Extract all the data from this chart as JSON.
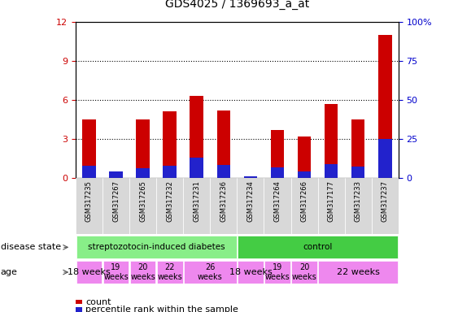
{
  "title": "GDS4025 / 1369693_a_at",
  "samples": [
    "GSM317235",
    "GSM317267",
    "GSM317265",
    "GSM317232",
    "GSM317231",
    "GSM317236",
    "GSM317234",
    "GSM317264",
    "GSM317266",
    "GSM317177",
    "GSM317233",
    "GSM317237"
  ],
  "count_values": [
    4.5,
    0.35,
    4.5,
    5.1,
    6.3,
    5.2,
    0.0,
    3.7,
    3.15,
    5.7,
    4.5,
    11.0
  ],
  "percentile_pct": [
    8.0,
    4.0,
    6.0,
    8.0,
    13.0,
    8.5,
    1.0,
    6.5,
    4.0,
    9.0,
    7.0,
    25.0
  ],
  "ylim_left": [
    0,
    12
  ],
  "ylim_right": [
    0,
    100
  ],
  "yticks_left": [
    0,
    3,
    6,
    9,
    12
  ],
  "ytick_labels_right": [
    "0",
    "25",
    "50",
    "75",
    "100%"
  ],
  "yticks_right": [
    0,
    25,
    50,
    75,
    100
  ],
  "bar_color_red": "#cc0000",
  "bar_color_blue": "#2222cc",
  "bar_width": 0.5,
  "disease_state_diabetes_label": "streptozotocin-induced diabetes",
  "disease_state_control_label": "control",
  "disease_state_diabetes_color": "#88ee88",
  "disease_state_control_color": "#44cc44",
  "age_color": "#ee88ee",
  "tick_color_left": "#cc0000",
  "tick_color_right": "#0000cc",
  "legend_count": "count",
  "legend_percentile": "percentile rank within the sample",
  "age_groups_diabetes": [
    {
      "start": 0,
      "end": 1,
      "label": "18 weeks",
      "fontsize": 8
    },
    {
      "start": 1,
      "end": 2,
      "label": "19\nweeks",
      "fontsize": 7
    },
    {
      "start": 2,
      "end": 3,
      "label": "20\nweeks",
      "fontsize": 7
    },
    {
      "start": 3,
      "end": 4,
      "label": "22\nweeks",
      "fontsize": 7
    },
    {
      "start": 4,
      "end": 6,
      "label": "26\nweeks",
      "fontsize": 7
    }
  ],
  "age_groups_control": [
    {
      "start": 6,
      "end": 7,
      "label": "18 weeks",
      "fontsize": 8
    },
    {
      "start": 7,
      "end": 8,
      "label": "19\nweeks",
      "fontsize": 7
    },
    {
      "start": 8,
      "end": 9,
      "label": "20\nweeks",
      "fontsize": 7
    },
    {
      "start": 9,
      "end": 12,
      "label": "22 weeks",
      "fontsize": 8
    }
  ],
  "label_disease_state": "disease state",
  "label_age": "age"
}
